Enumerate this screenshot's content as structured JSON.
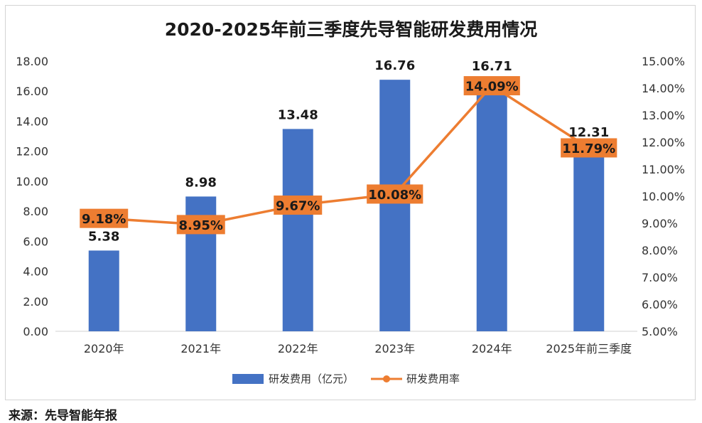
{
  "chart_data": {
    "type": "bar+line",
    "title": "2020-2025年前三季度先导智能研发费用情况",
    "categories": [
      "2020年",
      "2021年",
      "2022年",
      "2023年",
      "2024年",
      "2025年前三季度"
    ],
    "series": [
      {
        "name": "研发费用（亿元）",
        "type": "bar",
        "axis": "left",
        "values": [
          5.38,
          8.98,
          13.48,
          16.76,
          16.71,
          12.31
        ],
        "labels": [
          "5.38",
          "8.98",
          "13.48",
          "16.76",
          "16.71",
          "12.31"
        ],
        "color": "#4472C4"
      },
      {
        "name": "研发费用率",
        "type": "line",
        "axis": "right",
        "values": [
          9.18,
          8.95,
          9.67,
          10.08,
          14.09,
          11.79
        ],
        "labels": [
          "9.18%",
          "8.95%",
          "9.67%",
          "10.08%",
          "14.09%",
          "11.79%"
        ],
        "color": "#ED7D31"
      }
    ],
    "left_axis": {
      "ylim": [
        0,
        18
      ],
      "ticks": [
        "0.00",
        "2.00",
        "4.00",
        "6.00",
        "8.00",
        "10.00",
        "12.00",
        "14.00",
        "16.00",
        "18.00"
      ]
    },
    "right_axis": {
      "ylim": [
        5,
        15
      ],
      "ticks": [
        "5.00%",
        "6.00%",
        "7.00%",
        "8.00%",
        "9.00%",
        "10.00%",
        "11.00%",
        "12.00%",
        "13.00%",
        "14.00%",
        "15.00%"
      ]
    },
    "grid": false,
    "legend_position": "bottom"
  },
  "source": "来源：先导智能年报"
}
